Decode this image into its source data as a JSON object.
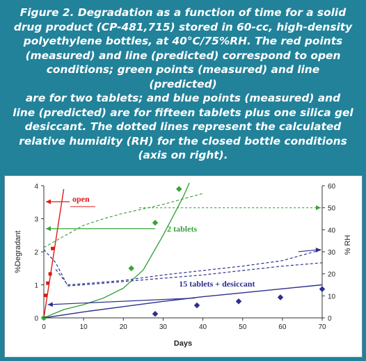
{
  "caption": "Figure 2. Degradation as a function of time for a solid\ndrug product (CP-481,715) stored in 60-cc, high-density\npolyethylene bottles, at 40°C/75%RH.  The red points\n(measured) and line (predicted) correspond to open\nconditions; green points (measured) and line (predicted)\nare for two tablets; and blue points (measured) and\nline (predicted) are for fifteen tablets plus one silica gel\ndesiccant.  The dotted lines represent the calculated\nrelative humidity (RH) for the closed bottle conditions\n(axis on right).",
  "chart_data": {
    "type": "line",
    "xlabel": "Days",
    "ylabel": "%Degradant",
    "y2label": "% RH",
    "xlim": [
      0,
      70
    ],
    "ylim": [
      0,
      4
    ],
    "y2lim": [
      0,
      60
    ],
    "xticks": [
      "0",
      "10",
      "20",
      "30",
      "40",
      "50",
      "60",
      "70"
    ],
    "yticks": [
      "0",
      "1",
      "2",
      "3",
      "4"
    ],
    "y2ticks": [
      "0",
      "10",
      "20",
      "30",
      "40",
      "50",
      "60"
    ],
    "grid": false,
    "colors": {
      "open": "#e01818",
      "two": "#3aa23a",
      "fifteen": "#2b2f8f"
    },
    "annotations": {
      "open": "open",
      "two": "2 tablets",
      "fifteen": "15 tablets + desiccant"
    },
    "series": [
      {
        "group": "open",
        "kind": "measured",
        "axis": "left",
        "points": [
          [
            0,
            0
          ],
          [
            0.5,
            0.68
          ],
          [
            1,
            1.05
          ],
          [
            1.6,
            1.33
          ],
          [
            2.2,
            2.1
          ]
        ]
      },
      {
        "group": "open",
        "kind": "predicted",
        "axis": "left",
        "points": [
          [
            0,
            0
          ],
          [
            5,
            3.9
          ]
        ]
      },
      {
        "group": "two",
        "kind": "measured",
        "axis": "left",
        "points": [
          [
            0,
            0
          ],
          [
            22,
            1.5
          ],
          [
            28,
            2.88
          ],
          [
            34,
            3.9
          ]
        ]
      },
      {
        "group": "two",
        "kind": "predicted",
        "axis": "left",
        "points": [
          [
            0,
            0
          ],
          [
            5,
            0.25
          ],
          [
            10,
            0.4
          ],
          [
            15,
            0.6
          ],
          [
            20,
            0.9
          ],
          [
            25,
            1.45
          ],
          [
            30,
            2.5
          ],
          [
            35,
            3.65
          ],
          [
            40,
            5.0
          ]
        ]
      },
      {
        "group": "two",
        "kind": "rh",
        "axis": "right",
        "points": [
          [
            0,
            32
          ],
          [
            5,
            37
          ],
          [
            10,
            42
          ],
          [
            15,
            45
          ],
          [
            20,
            47.5
          ],
          [
            25,
            49.5
          ],
          [
            30,
            51.5
          ],
          [
            35,
            54
          ],
          [
            40,
            56.5
          ]
        ]
      },
      {
        "group": "fifteen",
        "kind": "measured",
        "axis": "left",
        "points": [
          [
            28,
            0.12
          ],
          [
            38.5,
            0.38
          ],
          [
            49,
            0.5
          ],
          [
            59.5,
            0.62
          ],
          [
            70,
            0.87
          ]
        ]
      },
      {
        "group": "fifteen",
        "kind": "predicted",
        "axis": "left",
        "points": [
          [
            0,
            0
          ],
          [
            10,
            0.18
          ],
          [
            20,
            0.34
          ],
          [
            30,
            0.5
          ],
          [
            40,
            0.64
          ],
          [
            50,
            0.76
          ],
          [
            60,
            0.88
          ],
          [
            70,
            1.0
          ]
        ]
      },
      {
        "group": "fifteen",
        "kind": "rh",
        "axis": "right",
        "points": [
          [
            0,
            31
          ],
          [
            3,
            25
          ],
          [
            6,
            14.5
          ],
          [
            10,
            15
          ],
          [
            20,
            16.5
          ],
          [
            30,
            18
          ],
          [
            40,
            19.5
          ],
          [
            50,
            21.5
          ],
          [
            60,
            23.5
          ],
          [
            70,
            25
          ]
        ]
      },
      {
        "group": "fifteen",
        "kind": "rh-upper",
        "axis": "right",
        "points": [
          [
            3,
            22
          ],
          [
            6,
            15
          ],
          [
            10,
            15.5
          ],
          [
            20,
            17
          ],
          [
            30,
            19.5
          ],
          [
            40,
            21.5
          ],
          [
            50,
            23.5
          ],
          [
            60,
            26
          ],
          [
            70,
            31
          ]
        ]
      }
    ]
  }
}
